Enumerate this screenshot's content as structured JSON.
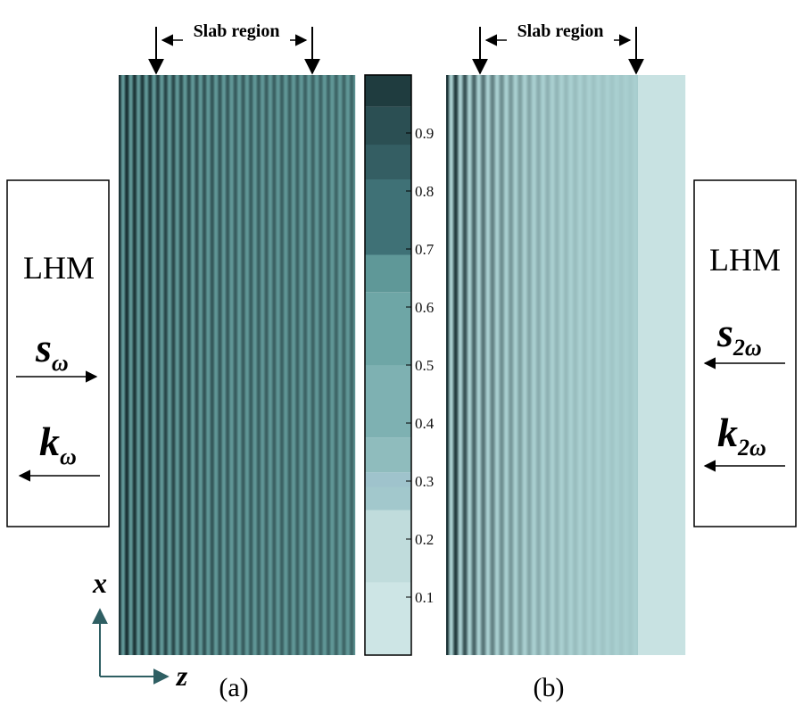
{
  "panel_a": {
    "label": "(a)",
    "slab_label": "Slab region",
    "box": {
      "title": "LHM",
      "vector1_letter": "s",
      "vector1_sub": "ω",
      "vector2_letter": "k",
      "vector2_sub": "ω"
    }
  },
  "panel_b": {
    "label": "(b)",
    "slab_label": "Slab region",
    "box": {
      "title": "LHM",
      "vector1_letter": "s",
      "vector1_sub": "2ω",
      "vector2_letter": "k",
      "vector2_sub": "2ω"
    }
  },
  "axes": {
    "x_label": "x",
    "z_label": "z"
  },
  "colorbar": {
    "ticks": [
      "0.1",
      "0.2",
      "0.3",
      "0.4",
      "0.5",
      "0.6",
      "0.7",
      "0.8",
      "0.9"
    ],
    "levels": [
      {
        "value": 0.0,
        "color": "#cde5e5"
      },
      {
        "value": 0.125,
        "color": "#c0dcdc"
      },
      {
        "value": 0.25,
        "color": "#a2c8cc"
      },
      {
        "value": 0.29,
        "color": "#9fc3cc"
      },
      {
        "value": 0.315,
        "color": "#8fbcbd"
      },
      {
        "value": 0.375,
        "color": "#7eb1b2"
      },
      {
        "value": 0.5,
        "color": "#6ea6a6"
      },
      {
        "value": 0.625,
        "color": "#5f9898"
      },
      {
        "value": 0.69,
        "color": "#3f7176"
      },
      {
        "value": 0.82,
        "color": "#345e63"
      },
      {
        "value": 0.88,
        "color": "#2b4f53"
      },
      {
        "value": 0.945,
        "color": "#1f3c3f"
      }
    ]
  },
  "colors": {
    "dark": "#1c3437",
    "mid": "#5f9595",
    "light": "#c8e2e2",
    "background": "#ffffff"
  }
}
